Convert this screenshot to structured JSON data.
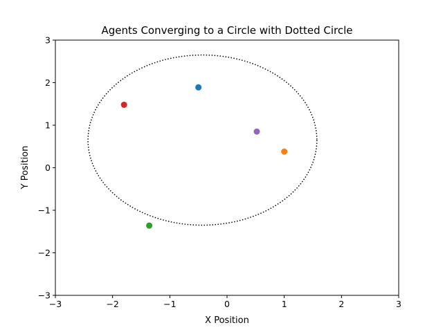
{
  "chart_data": {
    "type": "scatter",
    "title": "Agents Converging to a Circle with Dotted Circle",
    "xlabel": "X Position",
    "ylabel": "Y Position",
    "xlim": [
      -3,
      3
    ],
    "ylim": [
      -3,
      3
    ],
    "x_ticks": [
      -3,
      -2,
      -1,
      0,
      1,
      2,
      3
    ],
    "y_ticks": [
      -3,
      -2,
      -1,
      0,
      1,
      2,
      3
    ],
    "x_tick_labels": [
      "−3",
      "−2",
      "−1",
      "0",
      "1",
      "2",
      "3"
    ],
    "y_tick_labels": [
      "−3",
      "−2",
      "−1",
      "0",
      "1",
      "2",
      "3"
    ],
    "grid": false,
    "circle": {
      "center": [
        -0.43,
        0.65
      ],
      "radius": 2.0,
      "style": "dotted",
      "color": "#000000"
    },
    "points": [
      {
        "x": -0.5,
        "y": 1.89,
        "color": "#1f77b4"
      },
      {
        "x": 1.0,
        "y": 0.38,
        "color": "#ff7f0e"
      },
      {
        "x": -1.36,
        "y": -1.36,
        "color": "#2ca02c"
      },
      {
        "x": -1.8,
        "y": 1.48,
        "color": "#d62728"
      },
      {
        "x": 0.52,
        "y": 0.85,
        "color": "#9467bd"
      }
    ]
  }
}
